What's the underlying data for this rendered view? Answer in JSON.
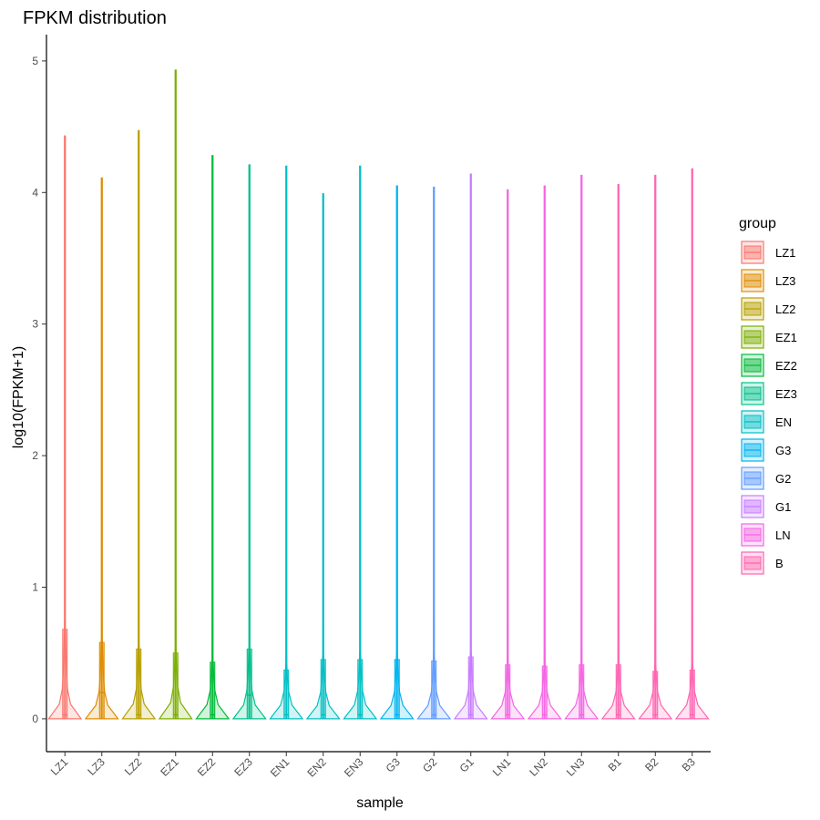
{
  "chart_data": {
    "type": "violin",
    "title": "FPKM distribution",
    "xlabel": "sample",
    "ylabel": "log10(FPKM+1)",
    "ylim": [
      -0.25,
      5.2
    ],
    "yticks": [
      0,
      1,
      2,
      3,
      4,
      5
    ],
    "grid": false,
    "legend_position": "right",
    "legend_title": "group",
    "groups": [
      {
        "name": "LZ1",
        "color": "#F8766D"
      },
      {
        "name": "LZ3",
        "color": "#DE8C00"
      },
      {
        "name": "LZ2",
        "color": "#B79F00"
      },
      {
        "name": "EZ1",
        "color": "#7CAE00"
      },
      {
        "name": "EZ2",
        "color": "#00BA38"
      },
      {
        "name": "EZ3",
        "color": "#00C08B"
      },
      {
        "name": "EN",
        "color": "#00BFC4"
      },
      {
        "name": "G3",
        "color": "#00B4F0"
      },
      {
        "name": "G2",
        "color": "#619CFF"
      },
      {
        "name": "G1",
        "color": "#C77CFF"
      },
      {
        "name": "LN",
        "color": "#F564E3"
      },
      {
        "name": "B",
        "color": "#FF64B0"
      }
    ],
    "samples": [
      {
        "name": "LZ1",
        "group": "LZ1",
        "max": 4.43,
        "q1": 0.0,
        "median": 0.03,
        "q3": 0.68
      },
      {
        "name": "LZ3",
        "group": "LZ3",
        "max": 4.11,
        "q1": 0.0,
        "median": 0.2,
        "q3": 0.58
      },
      {
        "name": "LZ2",
        "group": "LZ2",
        "max": 4.47,
        "q1": 0.0,
        "median": 0.03,
        "q3": 0.53
      },
      {
        "name": "EZ1",
        "group": "EZ1",
        "max": 4.93,
        "q1": 0.0,
        "median": 0.03,
        "q3": 0.5
      },
      {
        "name": "EZ2",
        "group": "EZ2",
        "max": 4.28,
        "q1": 0.0,
        "median": 0.03,
        "q3": 0.43
      },
      {
        "name": "EZ3",
        "group": "EZ3",
        "max": 4.21,
        "q1": 0.0,
        "median": 0.18,
        "q3": 0.53
      },
      {
        "name": "EN1",
        "group": "EN",
        "max": 4.2,
        "q1": 0.0,
        "median": 0.03,
        "q3": 0.37
      },
      {
        "name": "EN2",
        "group": "EN",
        "max": 3.99,
        "q1": 0.0,
        "median": 0.03,
        "q3": 0.45
      },
      {
        "name": "EN3",
        "group": "EN",
        "max": 4.2,
        "q1": 0.0,
        "median": 0.03,
        "q3": 0.45
      },
      {
        "name": "G3",
        "group": "G3",
        "max": 4.05,
        "q1": 0.0,
        "median": 0.03,
        "q3": 0.45
      },
      {
        "name": "G2",
        "group": "G2",
        "max": 4.04,
        "q1": 0.0,
        "median": 0.03,
        "q3": 0.44
      },
      {
        "name": "G1",
        "group": "G1",
        "max": 4.14,
        "q1": 0.0,
        "median": 0.03,
        "q3": 0.47
      },
      {
        "name": "LN1",
        "group": "LN",
        "max": 4.02,
        "q1": 0.0,
        "median": 0.03,
        "q3": 0.41
      },
      {
        "name": "LN2",
        "group": "LN",
        "max": 4.05,
        "q1": 0.0,
        "median": 0.03,
        "q3": 0.4
      },
      {
        "name": "LN3",
        "group": "LN",
        "max": 4.13,
        "q1": 0.0,
        "median": 0.03,
        "q3": 0.41
      },
      {
        "name": "B1",
        "group": "B",
        "max": 4.06,
        "q1": 0.0,
        "median": 0.03,
        "q3": 0.41
      },
      {
        "name": "B2",
        "group": "B",
        "max": 4.13,
        "q1": 0.0,
        "median": 0.03,
        "q3": 0.36
      },
      {
        "name": "B3",
        "group": "B",
        "max": 4.18,
        "q1": 0.0,
        "median": 0.03,
        "q3": 0.37
      }
    ]
  }
}
